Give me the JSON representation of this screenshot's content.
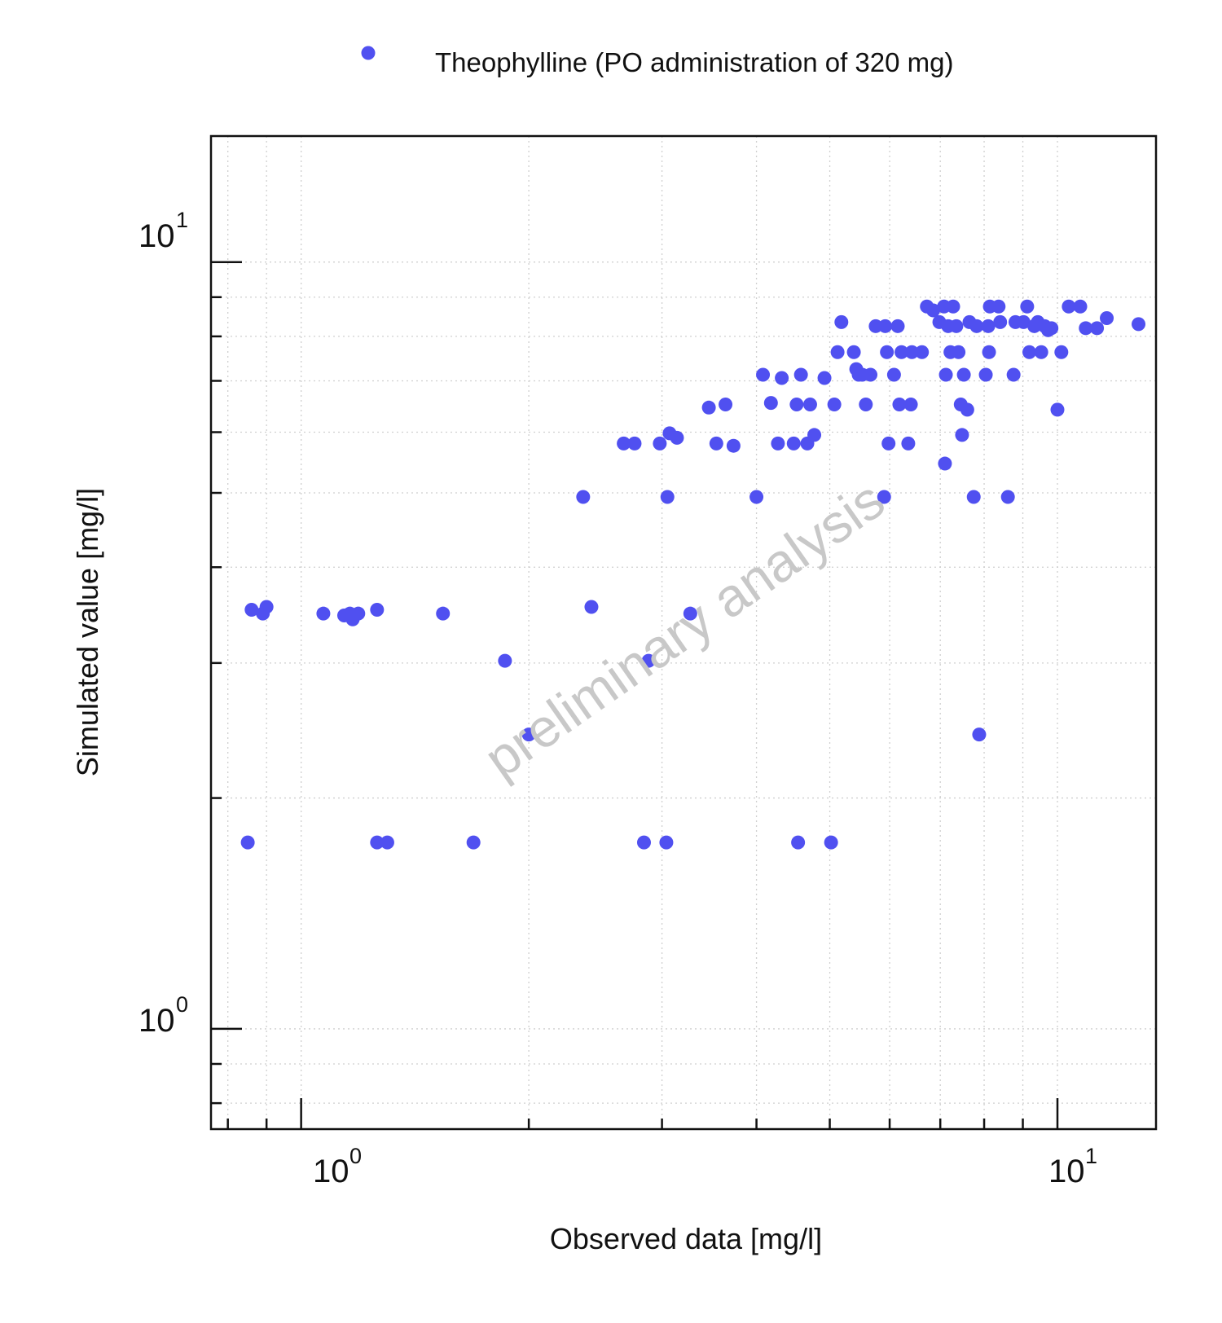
{
  "chart_data": {
    "type": "scatter",
    "xscale": "log",
    "yscale": "log",
    "xlim": [
      0.76,
      13.5
    ],
    "ylim": [
      0.74,
      14.6
    ],
    "xlabel": "Observed data [mg/l]",
    "ylabel": "Simulated value [mg/l]",
    "x_ticks": [
      {
        "value": 1,
        "base": "10",
        "exp": "0"
      },
      {
        "value": 10,
        "base": "10",
        "exp": "1"
      }
    ],
    "y_ticks": [
      {
        "value": 1,
        "base": "10",
        "exp": "0"
      },
      {
        "value": 10,
        "base": "10",
        "exp": "1"
      }
    ],
    "grid": true,
    "legend_position": "top",
    "watermark": "preliminary analysis",
    "colors": {
      "series": "#5050f0",
      "axis": "#111111",
      "grid": "#cfcfcf",
      "watermark": "#c8c8c8"
    },
    "series": [
      {
        "name": "Theophylline (PO administration of 320 mg)",
        "points": [
          [
            0.86,
            3.52
          ],
          [
            0.89,
            3.48
          ],
          [
            0.9,
            3.55
          ],
          [
            1.07,
            3.48
          ],
          [
            1.14,
            3.46
          ],
          [
            1.16,
            3.48
          ],
          [
            1.17,
            3.42
          ],
          [
            1.19,
            3.48
          ],
          [
            1.26,
            3.52
          ],
          [
            1.54,
            3.48
          ],
          [
            0.85,
            1.75
          ],
          [
            1.26,
            1.75
          ],
          [
            1.3,
            1.75
          ],
          [
            1.69,
            1.75
          ],
          [
            2.84,
            1.75
          ],
          [
            3.04,
            1.75
          ],
          [
            4.54,
            1.75
          ],
          [
            5.02,
            1.75
          ],
          [
            1.86,
            3.02
          ],
          [
            2.0,
            2.42
          ],
          [
            2.42,
            3.55
          ],
          [
            2.88,
            3.02
          ],
          [
            3.27,
            3.48
          ],
          [
            2.36,
            4.94
          ],
          [
            2.67,
            5.8
          ],
          [
            2.76,
            5.8
          ],
          [
            2.98,
            5.8
          ],
          [
            3.05,
            4.94
          ],
          [
            3.07,
            5.98
          ],
          [
            3.14,
            5.9
          ],
          [
            3.46,
            6.46
          ],
          [
            3.54,
            5.8
          ],
          [
            3.64,
            6.52
          ],
          [
            3.73,
            5.76
          ],
          [
            4.0,
            4.94
          ],
          [
            4.08,
            7.13
          ],
          [
            4.18,
            6.55
          ],
          [
            4.27,
            5.8
          ],
          [
            4.32,
            7.06
          ],
          [
            4.48,
            5.8
          ],
          [
            4.52,
            6.52
          ],
          [
            4.58,
            7.13
          ],
          [
            4.67,
            5.8
          ],
          [
            4.71,
            6.52
          ],
          [
            4.77,
            5.95
          ],
          [
            4.92,
            7.06
          ],
          [
            5.07,
            6.52
          ],
          [
            5.12,
            7.63
          ],
          [
            5.18,
            8.35
          ],
          [
            5.38,
            7.63
          ],
          [
            5.42,
            7.25
          ],
          [
            5.46,
            7.13
          ],
          [
            5.52,
            7.13
          ],
          [
            5.58,
            6.52
          ],
          [
            5.66,
            7.13
          ],
          [
            5.75,
            8.25
          ],
          [
            5.9,
            4.94
          ],
          [
            5.92,
            8.25
          ],
          [
            5.95,
            7.63
          ],
          [
            5.98,
            5.8
          ],
          [
            6.08,
            7.13
          ],
          [
            6.15,
            8.25
          ],
          [
            6.18,
            6.52
          ],
          [
            6.22,
            7.63
          ],
          [
            6.35,
            5.8
          ],
          [
            6.4,
            6.52
          ],
          [
            6.42,
            7.63
          ],
          [
            6.62,
            7.63
          ],
          [
            6.72,
            8.75
          ],
          [
            6.85,
            8.65
          ],
          [
            6.98,
            8.35
          ],
          [
            7.08,
            8.75
          ],
          [
            7.1,
            5.46
          ],
          [
            7.12,
            7.13
          ],
          [
            7.17,
            8.25
          ],
          [
            7.22,
            7.63
          ],
          [
            7.28,
            8.75
          ],
          [
            7.35,
            8.25
          ],
          [
            7.4,
            7.63
          ],
          [
            7.45,
            6.52
          ],
          [
            7.48,
            5.95
          ],
          [
            7.52,
            7.13
          ],
          [
            7.6,
            6.42
          ],
          [
            7.65,
            8.35
          ],
          [
            7.75,
            4.94
          ],
          [
            7.82,
            8.25
          ],
          [
            7.88,
            2.42
          ],
          [
            8.04,
            7.13
          ],
          [
            8.1,
            8.25
          ],
          [
            8.12,
            7.63
          ],
          [
            8.14,
            8.75
          ],
          [
            8.36,
            8.75
          ],
          [
            8.4,
            8.35
          ],
          [
            8.6,
            4.94
          ],
          [
            8.75,
            7.13
          ],
          [
            8.8,
            8.35
          ],
          [
            9.02,
            8.35
          ],
          [
            9.12,
            8.75
          ],
          [
            9.18,
            7.63
          ],
          [
            9.32,
            8.25
          ],
          [
            9.42,
            8.35
          ],
          [
            9.52,
            7.63
          ],
          [
            9.62,
            8.25
          ],
          [
            9.72,
            8.15
          ],
          [
            9.82,
            8.2
          ],
          [
            10.0,
            6.42
          ],
          [
            10.12,
            7.63
          ],
          [
            10.35,
            8.75
          ],
          [
            10.72,
            8.75
          ],
          [
            10.9,
            8.2
          ],
          [
            11.28,
            8.2
          ],
          [
            11.62,
            8.45
          ],
          [
            12.8,
            8.3
          ]
        ]
      }
    ]
  }
}
